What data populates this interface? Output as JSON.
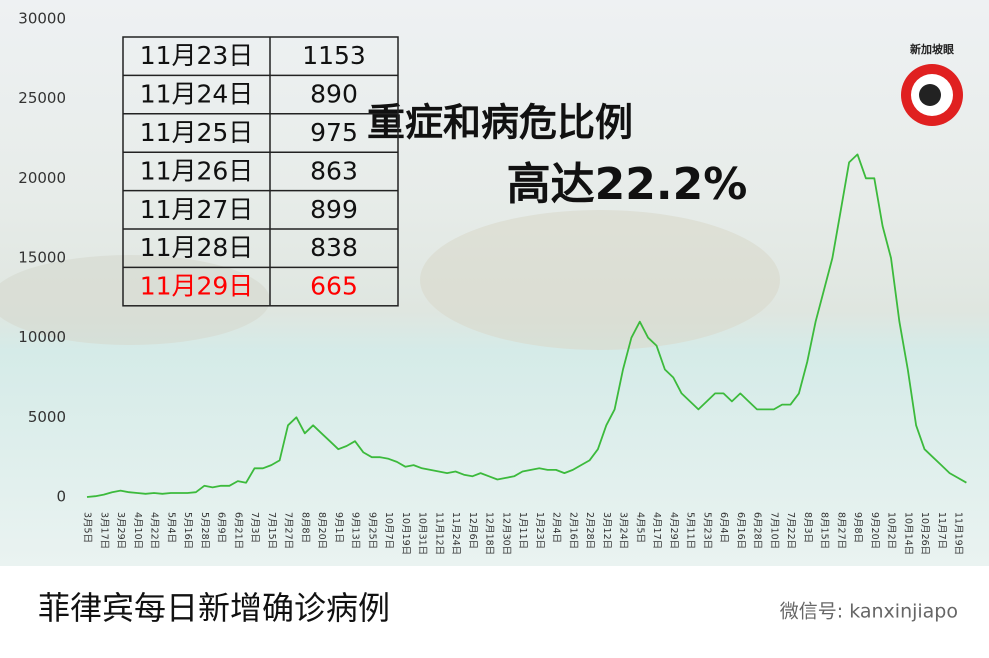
{
  "chart_data": {
    "type": "line",
    "categories": [
      "3月5日",
      null,
      "3月17日",
      null,
      "3月29日",
      null,
      "4月10日",
      null,
      "4月22日",
      null,
      "5月4日",
      null,
      "5月16日",
      null,
      "5月28日",
      null,
      "6月9日",
      null,
      "6月21日",
      null,
      "7月3日",
      null,
      "7月15日",
      null,
      "7月27日",
      null,
      "8月8日",
      null,
      "8月20日",
      null,
      "9月1日",
      null,
      "9月13日",
      null,
      "9月25日",
      null,
      "10月7日",
      null,
      "10月19日",
      null,
      "10月31日",
      null,
      "11月12日",
      null,
      "11月24日",
      null,
      "12月6日",
      null,
      "12月18日",
      null,
      "12月30日",
      null,
      "1月11日",
      null,
      "1月23日",
      null,
      "2月4日",
      null,
      "2月16日",
      null,
      "2月28日",
      null,
      "3月12日",
      null,
      "3月24日",
      null,
      "4月5日",
      null,
      "4月17日",
      null,
      "4月29日",
      null,
      "5月11日",
      null,
      "5月23日",
      null,
      "6月4日",
      null,
      "6月16日",
      null,
      "6月28日",
      null,
      "7月10日",
      null,
      "7月22日",
      null,
      "8月3日",
      null,
      "8月15日",
      null,
      "8月27日",
      null,
      "9月8日",
      null,
      "9月20日",
      null,
      "10月2日",
      null,
      "10月14日",
      null,
      "10月26日",
      null,
      "11月7日",
      null,
      "11月19日",
      null
    ],
    "values": [
      0,
      50,
      150,
      300,
      400,
      300,
      250,
      200,
      250,
      200,
      250,
      250,
      250,
      300,
      700,
      600,
      700,
      700,
      1000,
      900,
      1800,
      1800,
      2000,
      2300,
      4500,
      5000,
      4000,
      4500,
      4000,
      3500,
      3000,
      3200,
      3500,
      2800,
      2500,
      2500,
      2400,
      2200,
      1900,
      2000,
      1800,
      1700,
      1600,
      1500,
      1600,
      1400,
      1300,
      1500,
      1300,
      1100,
      1200,
      1300,
      1600,
      1700,
      1800,
      1700,
      1700,
      1500,
      1700,
      2000,
      2300,
      3000,
      4500,
      5500,
      8000,
      10000,
      11000,
      10000,
      9500,
      8000,
      7500,
      6500,
      6000,
      5500,
      6000,
      6500,
      6500,
      6000,
      6500,
      6000,
      5500,
      5500,
      5500,
      5800,
      5800,
      6500,
      8500,
      11000,
      13000,
      15000,
      18000,
      21000,
      21500,
      20000,
      20000,
      17000,
      15000,
      11000,
      8000,
      4500,
      3000,
      2500,
      2000,
      1500,
      1200,
      900
    ],
    "color": "#3cba3c",
    "ylim": [
      0,
      30000
    ],
    "yticks": [
      0,
      5000,
      10000,
      15000,
      20000,
      25000,
      30000
    ],
    "annotation": [
      "重症和病危比例",
      "高达22.2%"
    ],
    "caption": "菲律宾每日新增确诊病例"
  },
  "table": {
    "rows": [
      {
        "date": "11月23日",
        "value": 1153,
        "color": "#111111"
      },
      {
        "date": "11月24日",
        "value": 890,
        "color": "#111111"
      },
      {
        "date": "11月25日",
        "value": 975,
        "color": "#111111"
      },
      {
        "date": "11月26日",
        "value": 863,
        "color": "#111111"
      },
      {
        "date": "11月27日",
        "value": 899,
        "color": "#111111"
      },
      {
        "date": "11月28日",
        "value": 838,
        "color": "#111111"
      },
      {
        "date": "11月29日",
        "value": 665,
        "color": "#ff0000"
      }
    ]
  },
  "logo": "新加坡眼",
  "watermark": "微信号: kanxinjiapo"
}
